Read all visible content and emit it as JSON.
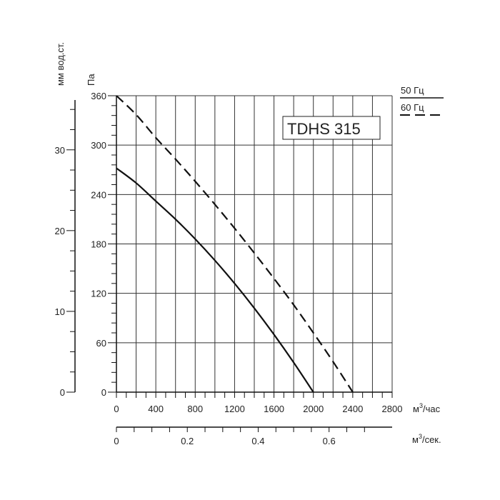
{
  "chart_data": {
    "type": "line",
    "title": "TDHS 315",
    "pressure_axis": {
      "label": "Па",
      "ticks": [
        0,
        60,
        120,
        180,
        240,
        300,
        360
      ],
      "range": [
        0,
        360
      ]
    },
    "water_column_axis": {
      "label": "мм вод.ст.",
      "ticks": [
        0,
        10,
        20,
        30
      ],
      "range": [
        0,
        36.7
      ]
    },
    "flow_axis_hourly": {
      "label_base": "м",
      "label_sup": "3",
      "label_tail": "/час",
      "ticks": [
        0,
        400,
        800,
        1200,
        1600,
        2000,
        2400,
        2800
      ],
      "range": [
        0,
        2800
      ]
    },
    "flow_axis_seconds": {
      "label_base": "м",
      "label_sup": "3",
      "label_tail": "/сек.",
      "ticks": [
        0,
        0.2,
        0.4,
        0.6
      ],
      "tick_labels": [
        "0",
        "0.2",
        "0.4",
        "0.6"
      ],
      "range": [
        0,
        0.778
      ]
    },
    "grid": true,
    "legend_position": "top-right",
    "series": [
      {
        "name": "50 Гц",
        "style": "solid",
        "x": [
          0,
          200,
          400,
          600,
          800,
          1000,
          1200,
          1400,
          1600,
          1800,
          2000
        ],
        "y": [
          272,
          254,
          232,
          210,
          186,
          160,
          132,
          102,
          70,
          36,
          0
        ]
      },
      {
        "name": "60 Гц",
        "style": "dashed",
        "x": [
          0,
          200,
          400,
          600,
          800,
          1000,
          1200,
          1400,
          1600,
          1800,
          2000,
          2200,
          2400
        ],
        "y": [
          360,
          337,
          309,
          283,
          256,
          228,
          199,
          169,
          138,
          106,
          72,
          37,
          0
        ]
      }
    ]
  },
  "colors": {
    "line": "#111111",
    "grid": "#333333",
    "text": "#222222"
  }
}
